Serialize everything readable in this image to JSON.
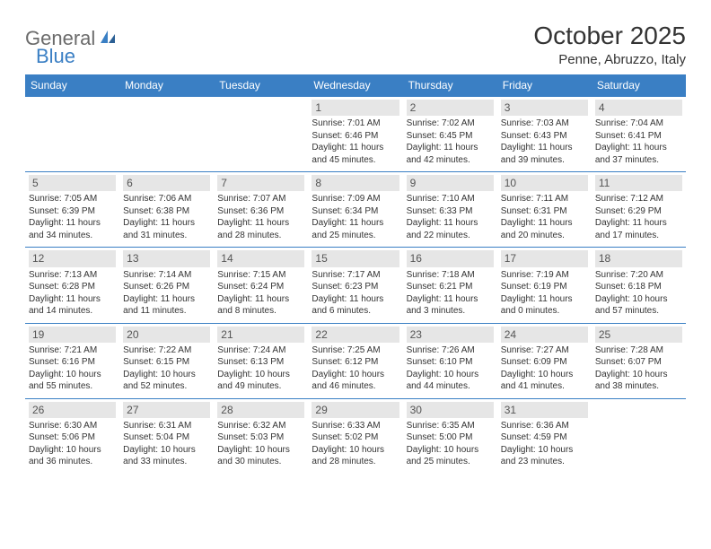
{
  "logo": {
    "part1": "General",
    "part2": "Blue"
  },
  "title": "October 2025",
  "location": "Penne, Abruzzo, Italy",
  "colors": {
    "header_bg": "#3a7fc4",
    "header_text": "#ffffff",
    "daynum_bg": "#e6e6e6",
    "daynum_text": "#555555",
    "rule": "#3a7fc4",
    "body_text": "#333333",
    "logo_gray": "#6b6b6b",
    "logo_blue": "#3a7fc4",
    "bg": "#ffffff"
  },
  "day_names": [
    "Sunday",
    "Monday",
    "Tuesday",
    "Wednesday",
    "Thursday",
    "Friday",
    "Saturday"
  ],
  "weeks": [
    [
      {
        "empty": true
      },
      {
        "empty": true
      },
      {
        "empty": true
      },
      {
        "day": "1",
        "sunrise": "7:01 AM",
        "sunset": "6:46 PM",
        "daylight": "11 hours and 45 minutes."
      },
      {
        "day": "2",
        "sunrise": "7:02 AM",
        "sunset": "6:45 PM",
        "daylight": "11 hours and 42 minutes."
      },
      {
        "day": "3",
        "sunrise": "7:03 AM",
        "sunset": "6:43 PM",
        "daylight": "11 hours and 39 minutes."
      },
      {
        "day": "4",
        "sunrise": "7:04 AM",
        "sunset": "6:41 PM",
        "daylight": "11 hours and 37 minutes."
      }
    ],
    [
      {
        "day": "5",
        "sunrise": "7:05 AM",
        "sunset": "6:39 PM",
        "daylight": "11 hours and 34 minutes."
      },
      {
        "day": "6",
        "sunrise": "7:06 AM",
        "sunset": "6:38 PM",
        "daylight": "11 hours and 31 minutes."
      },
      {
        "day": "7",
        "sunrise": "7:07 AM",
        "sunset": "6:36 PM",
        "daylight": "11 hours and 28 minutes."
      },
      {
        "day": "8",
        "sunrise": "7:09 AM",
        "sunset": "6:34 PM",
        "daylight": "11 hours and 25 minutes."
      },
      {
        "day": "9",
        "sunrise": "7:10 AM",
        "sunset": "6:33 PM",
        "daylight": "11 hours and 22 minutes."
      },
      {
        "day": "10",
        "sunrise": "7:11 AM",
        "sunset": "6:31 PM",
        "daylight": "11 hours and 20 minutes."
      },
      {
        "day": "11",
        "sunrise": "7:12 AM",
        "sunset": "6:29 PM",
        "daylight": "11 hours and 17 minutes."
      }
    ],
    [
      {
        "day": "12",
        "sunrise": "7:13 AM",
        "sunset": "6:28 PM",
        "daylight": "11 hours and 14 minutes."
      },
      {
        "day": "13",
        "sunrise": "7:14 AM",
        "sunset": "6:26 PM",
        "daylight": "11 hours and 11 minutes."
      },
      {
        "day": "14",
        "sunrise": "7:15 AM",
        "sunset": "6:24 PM",
        "daylight": "11 hours and 8 minutes."
      },
      {
        "day": "15",
        "sunrise": "7:17 AM",
        "sunset": "6:23 PM",
        "daylight": "11 hours and 6 minutes."
      },
      {
        "day": "16",
        "sunrise": "7:18 AM",
        "sunset": "6:21 PM",
        "daylight": "11 hours and 3 minutes."
      },
      {
        "day": "17",
        "sunrise": "7:19 AM",
        "sunset": "6:19 PM",
        "daylight": "11 hours and 0 minutes."
      },
      {
        "day": "18",
        "sunrise": "7:20 AM",
        "sunset": "6:18 PM",
        "daylight": "10 hours and 57 minutes."
      }
    ],
    [
      {
        "day": "19",
        "sunrise": "7:21 AM",
        "sunset": "6:16 PM",
        "daylight": "10 hours and 55 minutes."
      },
      {
        "day": "20",
        "sunrise": "7:22 AM",
        "sunset": "6:15 PM",
        "daylight": "10 hours and 52 minutes."
      },
      {
        "day": "21",
        "sunrise": "7:24 AM",
        "sunset": "6:13 PM",
        "daylight": "10 hours and 49 minutes."
      },
      {
        "day": "22",
        "sunrise": "7:25 AM",
        "sunset": "6:12 PM",
        "daylight": "10 hours and 46 minutes."
      },
      {
        "day": "23",
        "sunrise": "7:26 AM",
        "sunset": "6:10 PM",
        "daylight": "10 hours and 44 minutes."
      },
      {
        "day": "24",
        "sunrise": "7:27 AM",
        "sunset": "6:09 PM",
        "daylight": "10 hours and 41 minutes."
      },
      {
        "day": "25",
        "sunrise": "7:28 AM",
        "sunset": "6:07 PM",
        "daylight": "10 hours and 38 minutes."
      }
    ],
    [
      {
        "day": "26",
        "sunrise": "6:30 AM",
        "sunset": "5:06 PM",
        "daylight": "10 hours and 36 minutes."
      },
      {
        "day": "27",
        "sunrise": "6:31 AM",
        "sunset": "5:04 PM",
        "daylight": "10 hours and 33 minutes."
      },
      {
        "day": "28",
        "sunrise": "6:32 AM",
        "sunset": "5:03 PM",
        "daylight": "10 hours and 30 minutes."
      },
      {
        "day": "29",
        "sunrise": "6:33 AM",
        "sunset": "5:02 PM",
        "daylight": "10 hours and 28 minutes."
      },
      {
        "day": "30",
        "sunrise": "6:35 AM",
        "sunset": "5:00 PM",
        "daylight": "10 hours and 25 minutes."
      },
      {
        "day": "31",
        "sunrise": "6:36 AM",
        "sunset": "4:59 PM",
        "daylight": "10 hours and 23 minutes."
      },
      {
        "empty": true
      }
    ]
  ],
  "labels": {
    "sunrise": "Sunrise: ",
    "sunset": "Sunset: ",
    "daylight": "Daylight: "
  }
}
